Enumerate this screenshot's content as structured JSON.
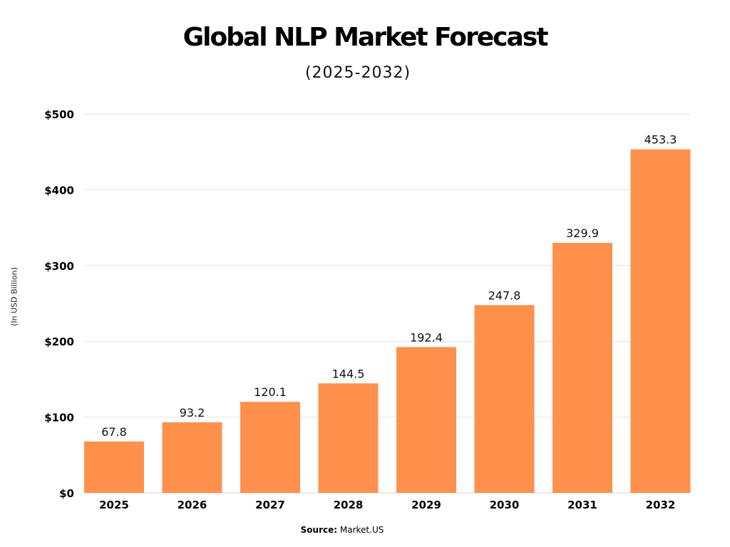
{
  "chart_data": {
    "type": "bar",
    "title": "Global NLP Market Forecast",
    "subtitle": "(2025-2032)",
    "ylabel": "(In USD Billion)",
    "xlabel": "",
    "categories": [
      "2025",
      "2026",
      "2027",
      "2028",
      "2029",
      "2030",
      "2031",
      "2032"
    ],
    "values": [
      67.8,
      93.2,
      120.1,
      144.5,
      192.4,
      247.8,
      329.9,
      453.3
    ],
    "data_labels": [
      "67.8",
      "93.2",
      "120.1",
      "144.5",
      "192.4",
      "247.8",
      "329.9",
      "453.3"
    ],
    "ylim": [
      0,
      500
    ],
    "yticks": [
      0,
      100,
      200,
      300,
      400,
      500
    ],
    "ytick_labels": [
      "$0",
      "$100",
      "$200",
      "$300",
      "$400",
      "$500"
    ],
    "grid": true,
    "bar_color": "#FF914D",
    "source_label": "Source:",
    "source_value": "Market.US"
  }
}
